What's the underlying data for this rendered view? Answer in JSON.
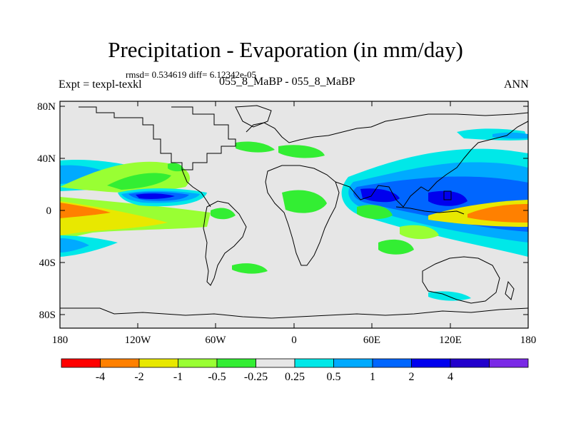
{
  "title": "Precipitation - Evaporation (in mm/day)",
  "stats": "rmsd= 0.534619 diff= 6.12342e-05",
  "experiment": "Expt = texpl-texkl",
  "case_label": "055_8_MaBP - 055_8_MaBP",
  "season": "ANN",
  "latitude_ticks": [
    "80N",
    "40N",
    "0",
    "40S",
    "80S"
  ],
  "longitude_ticks": [
    "180",
    "120W",
    "60W",
    "0",
    "60E",
    "120E",
    "180"
  ],
  "colorbar": {
    "colors": [
      "#ff0000",
      "#ff8000",
      "#e8e800",
      "#99ff33",
      "#33ee33",
      "#e6e6e6",
      "#00e8e8",
      "#00aaff",
      "#0066ff",
      "#0000ee",
      "#2200cc",
      "#7a29e6"
    ],
    "labels": [
      "-4",
      "-2",
      "-1",
      "-0.5",
      "-0.25",
      "0.25",
      "0.5",
      "1",
      "2",
      "4"
    ]
  }
}
